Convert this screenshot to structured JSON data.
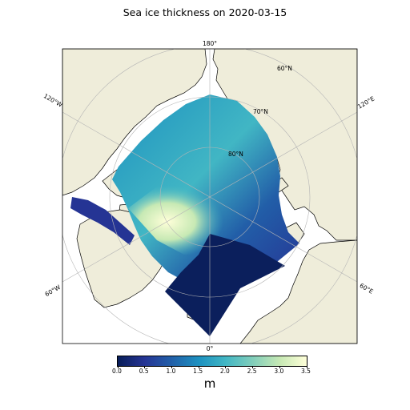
{
  "title": "Sea ice thickness on 2020-03-15",
  "map": {
    "projection": "north-polar-stereographic",
    "land_color": "#efedda",
    "coast_color": "#000000",
    "grid_color": "#b5b5b5",
    "meridian_labels": [
      "180°",
      "120°E",
      "60°E",
      "0°",
      "60°W",
      "120°W"
    ],
    "parallel_labels": [
      "60°N",
      "70°N",
      "80°N"
    ]
  },
  "colorbar": {
    "label": "m",
    "colormap": "YlGnBu_r",
    "range": [
      0.0,
      3.5
    ],
    "ticks": [
      "0.0",
      "0.5",
      "1.0",
      "1.5",
      "2.0",
      "2.5",
      "3.0",
      "3.5"
    ]
  }
}
